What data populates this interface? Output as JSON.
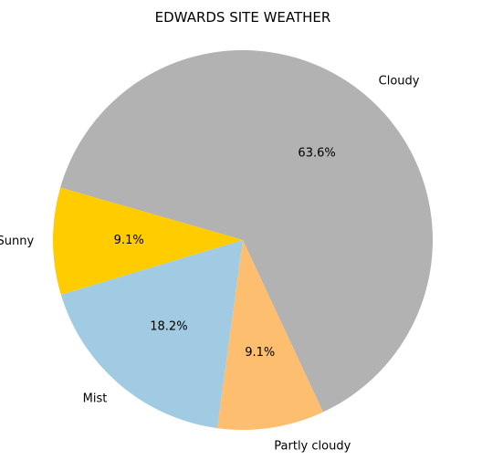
{
  "chart_data": {
    "type": "pie",
    "title": "EDWARDS SITE WEATHER",
    "slices": [
      {
        "label": "Cloudy",
        "value": 63.6,
        "pct_label": "63.6%",
        "color": "#b2b2b2"
      },
      {
        "label": "Sunny",
        "value": 9.1,
        "pct_label": "9.1%",
        "color": "#ffcc00"
      },
      {
        "label": "Mist",
        "value": 18.2,
        "pct_label": "18.2%",
        "color": "#a0cbe2"
      },
      {
        "label": "Partly cloudy",
        "value": 9.1,
        "pct_label": "9.1%",
        "color": "#fdbf6f"
      }
    ],
    "direction": "counterclockwise",
    "legend": "none"
  }
}
